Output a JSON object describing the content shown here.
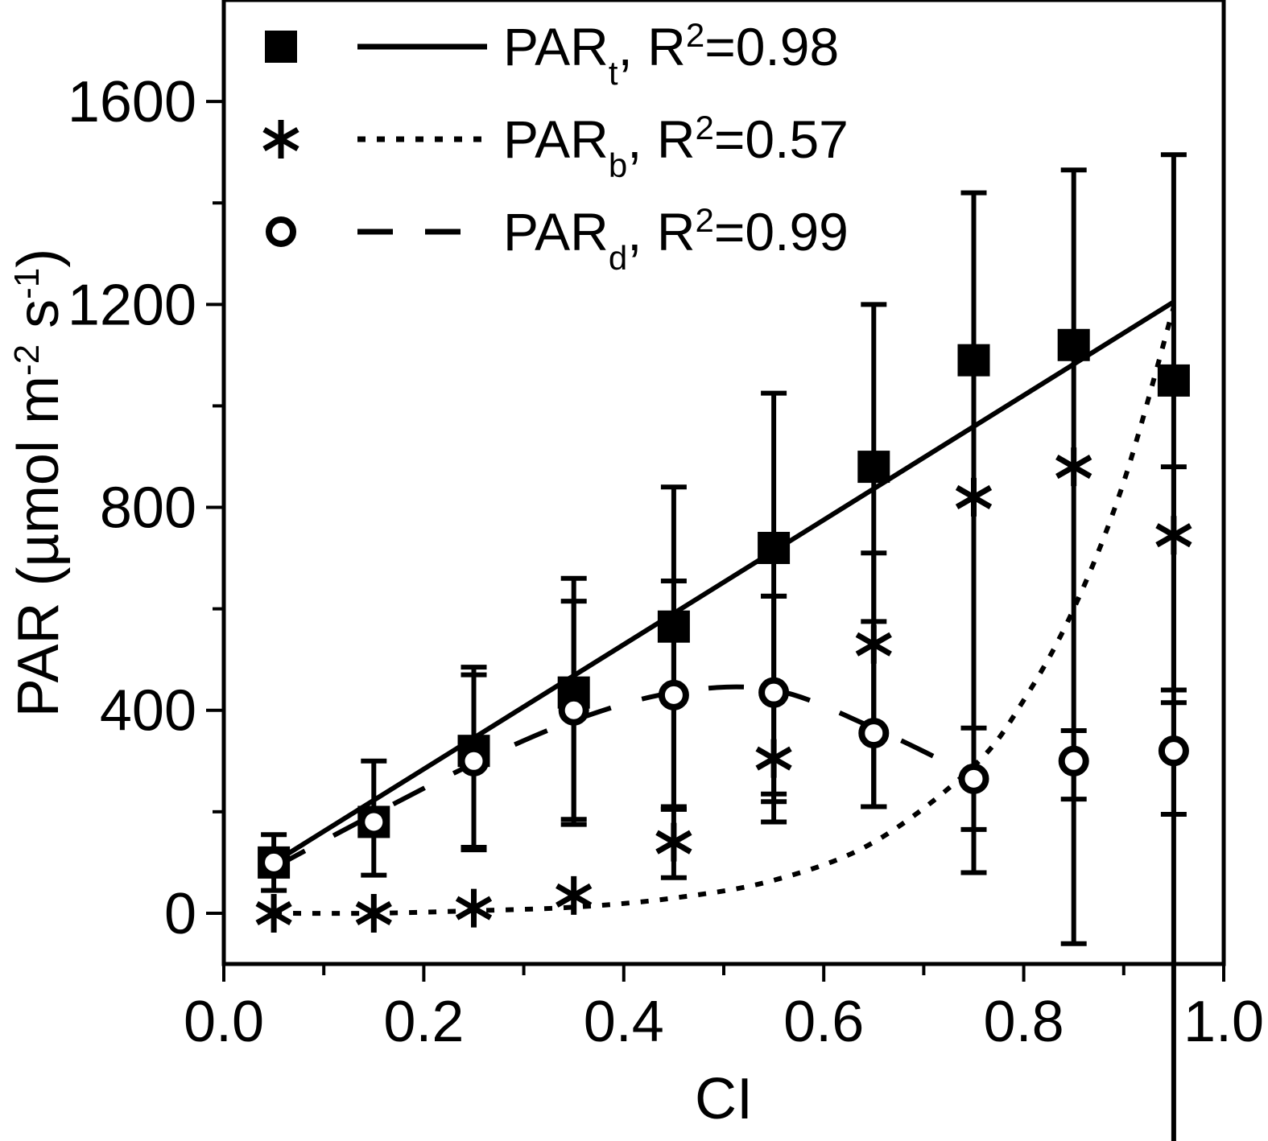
{
  "chart_data": {
    "type": "scatter",
    "xlabel": "CI",
    "ylabel": {
      "main": "PAR (µmol m",
      "exp1": "-2",
      "mid": " s",
      "exp2": "-1",
      "end": ")"
    },
    "xlim": [
      0.0,
      1.0
    ],
    "ylim": [
      -100,
      1800
    ],
    "xticks": [
      0.0,
      0.2,
      0.4,
      0.6,
      0.8,
      1.0
    ],
    "xtick_labels": [
      "0.0",
      "0.2",
      "0.4",
      "0.6",
      "0.8",
      "1.0"
    ],
    "yticks": [
      0,
      400,
      800,
      1200,
      1600
    ],
    "ytick_labels": [
      "0",
      "400",
      "800",
      "1200",
      "1600"
    ],
    "grid": false,
    "legend_position": "top-left",
    "x": [
      0.05,
      0.15,
      0.25,
      0.35,
      0.45,
      0.55,
      0.65,
      0.75,
      0.85,
      0.95
    ],
    "series": [
      {
        "name": "PAR",
        "subscript": "t",
        "r2_label": ", R",
        "r2_exp": "2",
        "r2_value": "=0.98",
        "marker": "square",
        "line_style": "solid",
        "values": [
          100,
          180,
          320,
          435,
          565,
          720,
          880,
          1090,
          1120,
          1050
        ],
        "err_low": [
          55,
          105,
          195,
          260,
          360,
          500,
          670,
          1010,
          1180,
          1540
        ],
        "err_high": [
          55,
          120,
          165,
          225,
          275,
          305,
          320,
          330,
          345,
          445
        ],
        "fit": {
          "kind": "linear",
          "x": [
            0.05,
            0.95
          ],
          "y": [
            100,
            1205
          ]
        }
      },
      {
        "name": "PAR",
        "subscript": "b",
        "r2_label": ", R",
        "r2_exp": "2",
        "r2_value": "=0.57",
        "marker": "asterisk",
        "line_style": "dotted",
        "values": [
          0,
          0,
          10,
          35,
          140,
          305,
          530,
          820,
          880,
          745
        ],
        "err_low": [
          0,
          0,
          0,
          0,
          70,
          125,
          320,
          0,
          0,
          305
        ],
        "err_high": [
          0,
          0,
          0,
          0,
          70,
          320,
          180,
          0,
          0,
          135
        ],
        "fit": {
          "kind": "curve",
          "x": [
            0.05,
            0.15,
            0.25,
            0.35,
            0.45,
            0.55,
            0.65,
            0.75,
            0.8,
            0.85,
            0.9,
            0.95
          ],
          "y": [
            0,
            0,
            5,
            12,
            30,
            65,
            140,
            290,
            420,
            600,
            850,
            1195
          ]
        }
      },
      {
        "name": "PAR",
        "subscript": "d",
        "r2_label": ", R",
        "r2_exp": "2",
        "r2_value": "=0.99",
        "marker": "open-circle",
        "line_style": "dashed",
        "values": [
          100,
          180,
          300,
          400,
          430,
          435,
          355,
          265,
          300,
          320
        ],
        "err_low": [
          0,
          0,
          170,
          215,
          225,
          200,
          145,
          100,
          75,
          125
        ],
        "err_high": [
          0,
          0,
          170,
          215,
          225,
          190,
          220,
          100,
          60,
          95
        ],
        "fit": {
          "kind": "curve",
          "x": [
            0.05,
            0.15,
            0.25,
            0.35,
            0.45,
            0.55,
            0.65,
            0.75
          ],
          "y": [
            90,
            195,
            295,
            380,
            435,
            440,
            365,
            270
          ]
        }
      }
    ]
  }
}
